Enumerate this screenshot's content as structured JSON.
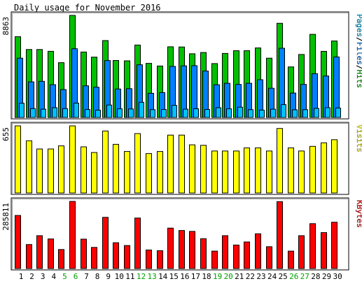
{
  "chart_data": {
    "title": "Daily usage for November 2016",
    "type": "bar",
    "days": [
      "1",
      "2",
      "3",
      "4",
      "5",
      "6",
      "7",
      "8",
      "9",
      "10",
      "11",
      "12",
      "13",
      "14",
      "15",
      "16",
      "17",
      "18",
      "19",
      "20",
      "21",
      "22",
      "23",
      "24",
      "25",
      "26",
      "27",
      "28",
      "29",
      "30"
    ],
    "weekend_days": [
      "5",
      "6",
      "12",
      "13",
      "19",
      "20",
      "26",
      "27"
    ],
    "panels": [
      {
        "key": "usage",
        "label_parts": [
          {
            "text": "Pages",
            "color": "#00c0ff"
          },
          {
            "text": "/",
            "color": "#000000"
          },
          {
            "text": "Files",
            "color": "#0080ff"
          },
          {
            "text": "/",
            "color": "#000000"
          },
          {
            "text": "Hits",
            "color": "#00c000"
          }
        ],
        "max_label": "8863",
        "max_value": 8863,
        "series": [
          {
            "name": "Hits",
            "color": "#00c000",
            "values": [
              7010,
              5900,
              5900,
              5740,
              4760,
              8863,
              5680,
              5240,
              6680,
              4950,
              4920,
              6290,
              4700,
              4470,
              6140,
              6120,
              5530,
              5640,
              4680,
              5560,
              5800,
              5800,
              6040,
              5150,
              8180,
              4390,
              5470,
              7220,
              5740,
              6640
            ]
          },
          {
            "name": "Files",
            "color": "#0080ff",
            "values": [
              5150,
              3090,
              3140,
              2850,
              2420,
              5970,
              2750,
              2630,
              4940,
              2470,
              2500,
              4580,
              2100,
              2160,
              4440,
              4480,
              4500,
              4030,
              2840,
              2970,
              2870,
              2970,
              3280,
              2540,
              6010,
              2120,
              2870,
              3800,
              3600,
              5260
            ]
          },
          {
            "name": "Pages",
            "color": "#00c0ff",
            "values": [
              1240,
              770,
              720,
              850,
              770,
              1250,
              690,
              640,
              1080,
              750,
              740,
              1320,
              680,
              690,
              1050,
              720,
              760,
              700,
              850,
              750,
              900,
              680,
              640,
              720,
              1120,
              670,
              680,
              790,
              850,
              820
            ]
          }
        ]
      },
      {
        "key": "visits",
        "label_parts": [
          {
            "text": "Visits",
            "color": "#ffff00"
          }
        ],
        "max_label": "655",
        "max_value": 655,
        "series": [
          {
            "name": "Visits",
            "color": "#ffff00",
            "values": [
              655,
              510,
              430,
              430,
              460,
              655,
              450,
              395,
              605,
              475,
              405,
              580,
              385,
              405,
              565,
              565,
              470,
              465,
              410,
              410,
              410,
              440,
              440,
              410,
              630,
              440,
              410,
              455,
              490,
              520
            ]
          }
        ]
      },
      {
        "key": "kbytes",
        "label_parts": [
          {
            "text": "KBytes",
            "color": "#ff0000"
          }
        ],
        "max_label": "285811",
        "max_value": 285811,
        "series": [
          {
            "name": "KBytes",
            "color": "#ff0000",
            "values": [
              226000,
              102000,
              140000,
              126000,
              81000,
              285811,
              125000,
              90000,
              218000,
              110000,
              98000,
              215000,
              79000,
              76000,
              172000,
              162000,
              158000,
              127000,
              74000,
              140000,
              100000,
              113000,
              148000,
              93000,
              285000,
              74000,
              140000,
              191000,
              153000,
              197000
            ]
          }
        ]
      }
    ]
  }
}
